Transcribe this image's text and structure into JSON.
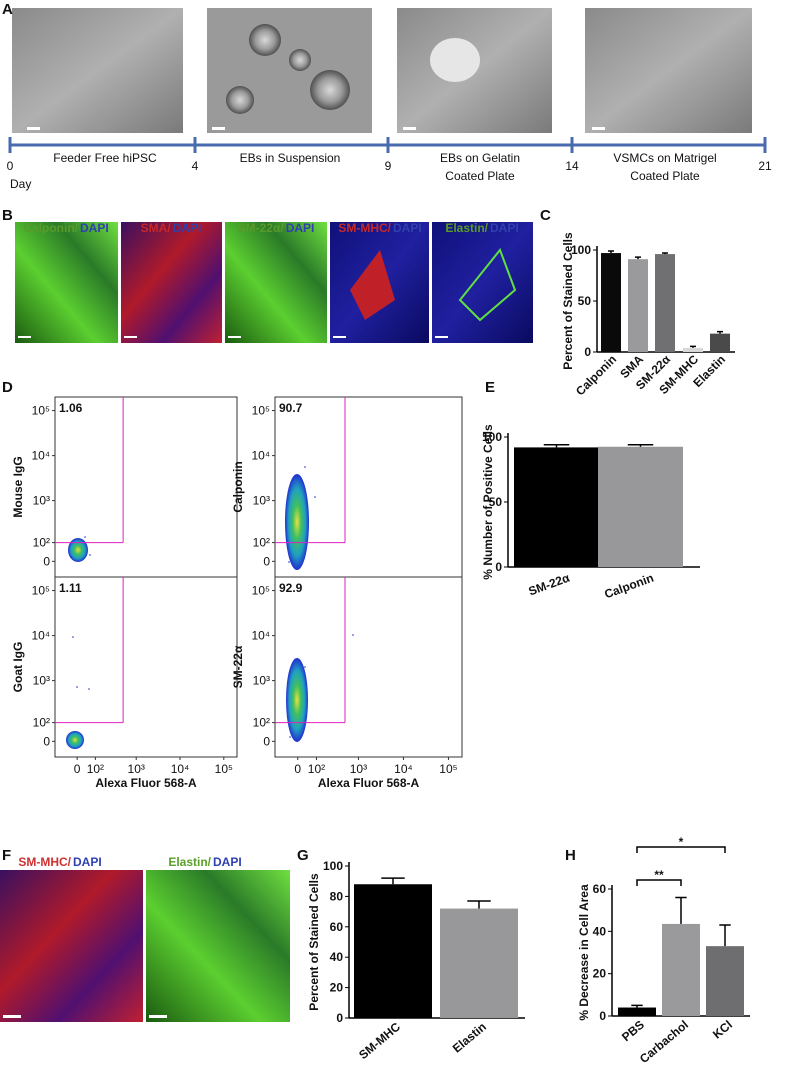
{
  "panel_labels": [
    "A",
    "B",
    "C",
    "D",
    "E",
    "F",
    "G",
    "H"
  ],
  "timeline": {
    "days": [
      0,
      4,
      9,
      14,
      21
    ],
    "day_label": "Day",
    "stages": [
      [
        "Feeder Free hiPSC"
      ],
      [
        "EBs in Suspension"
      ],
      [
        "EBs on Gelatin",
        "Coated Plate"
      ],
      [
        "VSMCs on Matrigel",
        "Coated Plate"
      ]
    ]
  },
  "stains_b": [
    {
      "marker": "Calponin/",
      "counter": "DAPI",
      "color": "#5a9a2a"
    },
    {
      "marker": "SMA/",
      "counter": "DAPI",
      "color": "#c8282a"
    },
    {
      "marker": "SM-22α/",
      "counter": "DAPI",
      "color": "#5a9a2a"
    },
    {
      "marker": "SM-MHC/",
      "counter": "DAPI",
      "color": "#c8282a"
    },
    {
      "marker": "Elastin/",
      "counter": "DAPI",
      "color": "#5a9a2a"
    }
  ],
  "stains_f": [
    {
      "marker": "SM-MHC/",
      "counter": "DAPI",
      "color": "#d03030"
    },
    {
      "marker": "Elastin/",
      "counter": "DAPI",
      "color": "#5aa02a"
    }
  ],
  "counter_color": "#3040b0",
  "chart_data": [
    {
      "type": "bar",
      "ylabel": "Percent of Stained Cells",
      "categories": [
        "Calponin",
        "SMA",
        "SM-22α",
        "SM-MHC",
        "Elastin"
      ],
      "values": [
        97,
        91,
        96,
        4,
        18
      ],
      "errors": [
        2,
        2,
        1,
        1.5,
        2
      ],
      "colors": [
        "#0a0a0a",
        "#9a9a9c",
        "#707072",
        "#d8d8d8",
        "#4a4a4a"
      ],
      "ylim": [
        0,
        100
      ],
      "yticks": [
        0,
        50,
        100
      ]
    },
    {
      "type": "flow",
      "ylabel": "Mouse IgG",
      "gate_percent": 1.06,
      "gate": [
        500,
        100
      ],
      "color": "#e020c0",
      "xlim": [
        -130,
        200000
      ],
      "ylim": [
        -80,
        200000
      ],
      "yticks": [
        0,
        {
          "value": 100,
          "label": "10²"
        },
        {
          "value": 1000,
          "label": "10³"
        },
        {
          "value": 10000,
          "label": "10⁴"
        },
        {
          "value": 100000,
          "label": "10⁵"
        }
      ]
    },
    {
      "type": "flow",
      "ylabel": "Calponin",
      "gate_percent": 90.7,
      "gate": [
        500,
        100
      ],
      "color": "#e020c0",
      "xlim": [
        -130,
        200000
      ],
      "ylim": [
        -80,
        200000
      ],
      "yticks": [
        0,
        {
          "value": 100,
          "label": "10²"
        },
        {
          "value": 1000,
          "label": "10³"
        },
        {
          "value": 10000,
          "label": "10⁴"
        },
        {
          "value": 100000,
          "label": "10⁵"
        }
      ]
    },
    {
      "type": "flow",
      "ylabel": "Goat IgG",
      "xlabel": "Alexa Fluor 568-A",
      "gate_percent": 1.11,
      "gate": [
        500,
        100
      ],
      "color": "#e020c0",
      "xlim": [
        -130,
        200000
      ],
      "ylim": [
        -80,
        200000
      ],
      "xticks": [
        0,
        {
          "value": 100,
          "label": "10²"
        },
        {
          "value": 1000,
          "label": "10³"
        },
        {
          "value": 10000,
          "label": "10⁴"
        },
        {
          "value": 100000,
          "label": "10⁵"
        }
      ],
      "yticks": [
        0,
        {
          "value": 100,
          "label": "10²"
        },
        {
          "value": 1000,
          "label": "10³"
        },
        {
          "value": 10000,
          "label": "10⁴"
        },
        {
          "value": 100000,
          "label": "10⁵"
        }
      ]
    },
    {
      "type": "flow",
      "ylabel": "SM-22α",
      "xlabel": "Alexa Fluor 568-A",
      "gate_percent": 92.9,
      "gate": [
        500,
        100
      ],
      "color": "#e020c0",
      "xlim": [
        -130,
        200000
      ],
      "ylim": [
        -80,
        200000
      ],
      "xticks": [
        0,
        {
          "value": 100,
          "label": "10²"
        },
        {
          "value": 1000,
          "label": "10³"
        },
        {
          "value": 10000,
          "label": "10⁴"
        },
        {
          "value": 100000,
          "label": "10⁵"
        }
      ],
      "yticks": [
        0,
        {
          "value": 100,
          "label": "10²"
        },
        {
          "value": 1000,
          "label": "10³"
        },
        {
          "value": 10000,
          "label": "10⁴"
        },
        {
          "value": 100000,
          "label": "10⁵"
        }
      ]
    },
    {
      "type": "bar",
      "ylabel": "% Number of Positive Cells",
      "categories": [
        "SM-22α",
        "Calponin"
      ],
      "values": [
        92,
        92.5
      ],
      "errors": [
        2,
        1.5
      ],
      "colors": [
        "#000000",
        "#98989a"
      ],
      "ylim": [
        0,
        100
      ],
      "yticks": [
        0,
        50,
        100
      ]
    },
    {
      "type": "bar",
      "ylabel": "Percent of Stained Cells",
      "categories": [
        "SM-MHC",
        "Elastin"
      ],
      "values": [
        88,
        72
      ],
      "errors": [
        4,
        5
      ],
      "colors": [
        "#000000",
        "#98989a"
      ],
      "ylim": [
        0,
        100
      ],
      "yticks": [
        0,
        20,
        40,
        60,
        80,
        100
      ]
    },
    {
      "type": "bar",
      "ylabel": "% Decrease in Cell Area",
      "categories": [
        "PBS",
        "Carbachol",
        "KCl"
      ],
      "values": [
        4,
        43.5,
        33
      ],
      "errors": [
        1,
        12.5,
        10
      ],
      "colors": [
        "#000000",
        "#9a9a9c",
        "#6e6e70"
      ],
      "ylim": [
        0,
        60
      ],
      "yticks": [
        0,
        20,
        40,
        60
      ],
      "annotations": [
        "**",
        "*"
      ]
    }
  ]
}
